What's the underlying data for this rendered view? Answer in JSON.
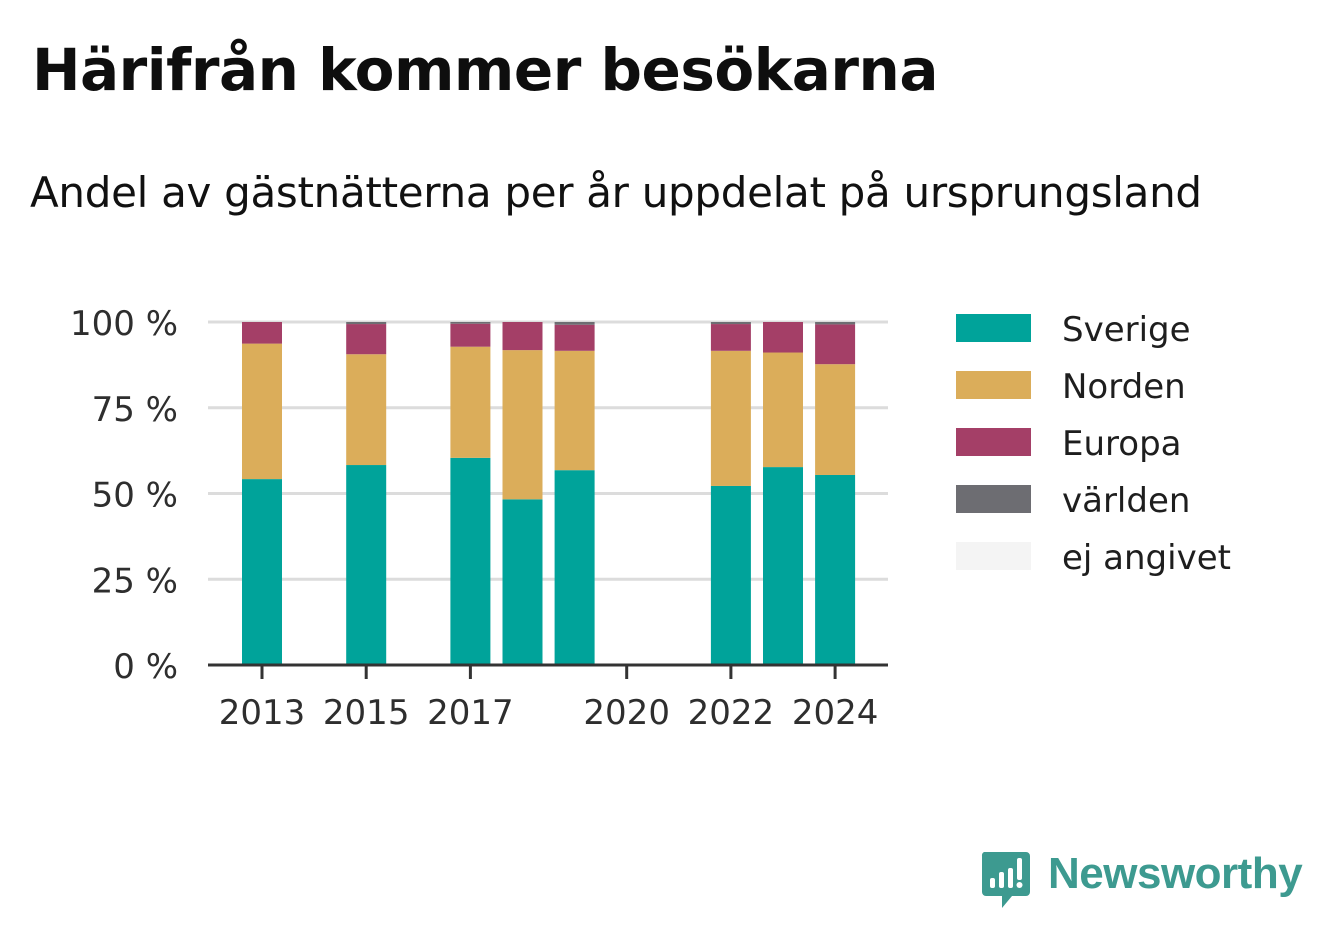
{
  "title": "Härifrån kommer besökarna",
  "subtitle": "Andel av gästnätterna per år uppdelat på ursprungsland",
  "brand": "Newsworthy",
  "colors": {
    "Sverige": "#00a39a",
    "Norden": "#dbad5a",
    "Europa": "#a43f67",
    "världen": "#6d6d72",
    "ej angivet": "#f4f4f4",
    "brand": "#3d9a90"
  },
  "chart_data": {
    "type": "bar",
    "stacked": true,
    "x": [
      2013,
      2014,
      2015,
      2016,
      2017,
      2018,
      2019,
      2020,
      2021,
      2022,
      2023,
      2024
    ],
    "x_tick_labels": [
      "2013",
      "2015",
      "2017",
      "2020",
      "2022",
      "2024"
    ],
    "x_tick_values": [
      2013,
      2015,
      2017,
      2020,
      2022,
      2024
    ],
    "y_tick_labels": [
      "0 %",
      "25 %",
      "50 %",
      "75 %",
      "100 %"
    ],
    "y_tick_values": [
      0,
      25,
      50,
      75,
      100
    ],
    "ylim": [
      0,
      100
    ],
    "grid": true,
    "legend_position": "right",
    "series": [
      {
        "name": "Sverige",
        "values": [
          54.2,
          null,
          58.3,
          null,
          60.4,
          48.3,
          56.8,
          null,
          null,
          52.2,
          57.7,
          55.4
        ]
      },
      {
        "name": "Norden",
        "values": [
          39.5,
          null,
          32.3,
          null,
          32.4,
          43.5,
          34.8,
          null,
          null,
          39.4,
          33.4,
          32.3
        ]
      },
      {
        "name": "Europa",
        "values": [
          6.3,
          null,
          8.8,
          null,
          6.7,
          8.2,
          7.6,
          null,
          null,
          7.8,
          8.9,
          11.6
        ]
      },
      {
        "name": "världen",
        "values": [
          0,
          null,
          0.6,
          null,
          0.5,
          0,
          0.8,
          null,
          null,
          0.6,
          0,
          0.7
        ]
      },
      {
        "name": "ej angivet",
        "values": [
          0,
          null,
          0,
          null,
          0,
          0,
          0,
          null,
          null,
          0,
          0,
          0
        ]
      }
    ]
  }
}
